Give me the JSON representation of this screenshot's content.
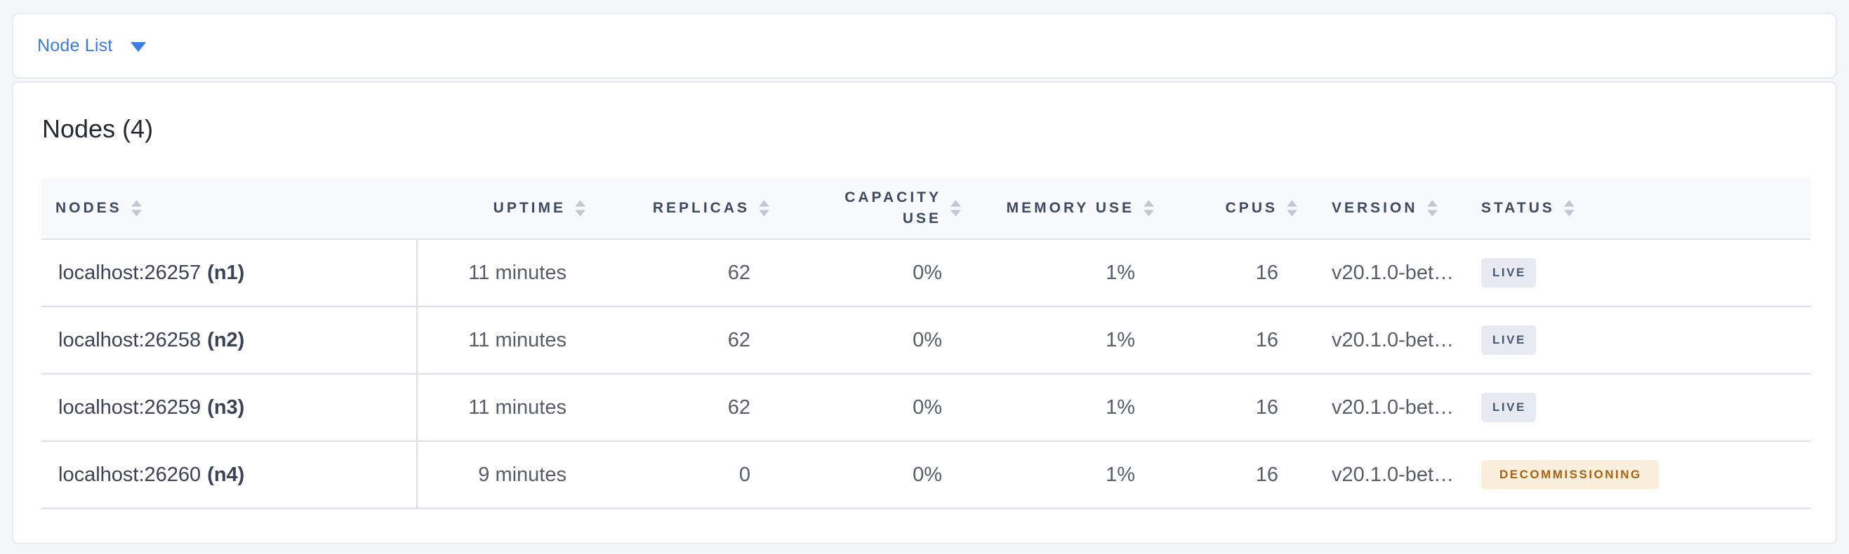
{
  "toolbar": {
    "dropdown_label": "Node List"
  },
  "main": {
    "title": "Nodes (4)",
    "table": {
      "columns": [
        {
          "id": "nodes",
          "label": "NODES"
        },
        {
          "id": "uptime",
          "label": "UPTIME"
        },
        {
          "id": "replicas",
          "label": "REPLICAS"
        },
        {
          "id": "capacity_use",
          "label": "CAPACITY USE"
        },
        {
          "id": "memory_use",
          "label": "MEMORY USE"
        },
        {
          "id": "cpus",
          "label": "CPUS"
        },
        {
          "id": "version",
          "label": "VERSION"
        },
        {
          "id": "status",
          "label": "STATUS"
        }
      ],
      "rows": [
        {
          "node_address": "localhost:26257",
          "node_id": "(n1)",
          "uptime": "11 minutes",
          "replicas": "62",
          "capacity_use": "0%",
          "memory_use": "1%",
          "cpus": "16",
          "version": "v20.1.0-bet…",
          "status": "LIVE"
        },
        {
          "node_address": "localhost:26258",
          "node_id": "(n2)",
          "uptime": "11 minutes",
          "replicas": "62",
          "capacity_use": "0%",
          "memory_use": "1%",
          "cpus": "16",
          "version": "v20.1.0-bet…",
          "status": "LIVE"
        },
        {
          "node_address": "localhost:26259",
          "node_id": "(n3)",
          "uptime": "11 minutes",
          "replicas": "62",
          "capacity_use": "0%",
          "memory_use": "1%",
          "cpus": "16",
          "version": "v20.1.0-bet…",
          "status": "LIVE"
        },
        {
          "node_address": "localhost:26260",
          "node_id": "(n4)",
          "uptime": "9 minutes",
          "replicas": "0",
          "capacity_use": "0%",
          "memory_use": "1%",
          "cpus": "16",
          "version": "v20.1.0-bet…",
          "status": "DECOMMISSIONING"
        }
      ]
    }
  },
  "colors": {
    "accent_blue": "#3B7CEA",
    "page_background": "#F4F6FA",
    "card_border": "#E7EAF0",
    "header_text": "#3E4A63",
    "row_border": "#D9DEE8",
    "sort_arrow": "#C2C7D1",
    "live_badge_bg": "#E7EAF1",
    "live_badge_text": "#475872",
    "decommissioning_badge_bg": "#F9EFDC",
    "decommissioning_badge_text": "#A9610F"
  }
}
